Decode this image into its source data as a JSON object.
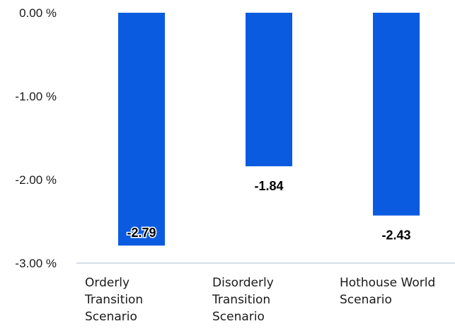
{
  "chart_data": {
    "type": "bar",
    "categories": [
      "Orderly Transition Scenario",
      "Disorderly Transition Scenario",
      "Hothouse World Scenario"
    ],
    "category_label_lines": [
      [
        "Orderly",
        "Transition",
        "Scenario"
      ],
      [
        "Disorderly",
        "Transition",
        "Scenario"
      ],
      [
        "Hothouse World",
        "Scenario"
      ]
    ],
    "values": [
      -2.79,
      -1.84,
      -2.43
    ],
    "data_labels": [
      "-2.79",
      "-1.84",
      "-2.43"
    ],
    "y_ticks": [
      0,
      -1,
      -2,
      -3
    ],
    "y_tick_labels": [
      "0.00 %",
      "-1.00 %",
      "-2.00 %",
      "-3.00 %"
    ],
    "ylim": [
      -3,
      0
    ],
    "title": "",
    "xlabel": "",
    "ylabel": "",
    "grid": false,
    "legend": "none",
    "colors": {
      "bar": "#0a5be0",
      "axis": "#c7d3e3",
      "text": "#1a1a1a"
    }
  }
}
